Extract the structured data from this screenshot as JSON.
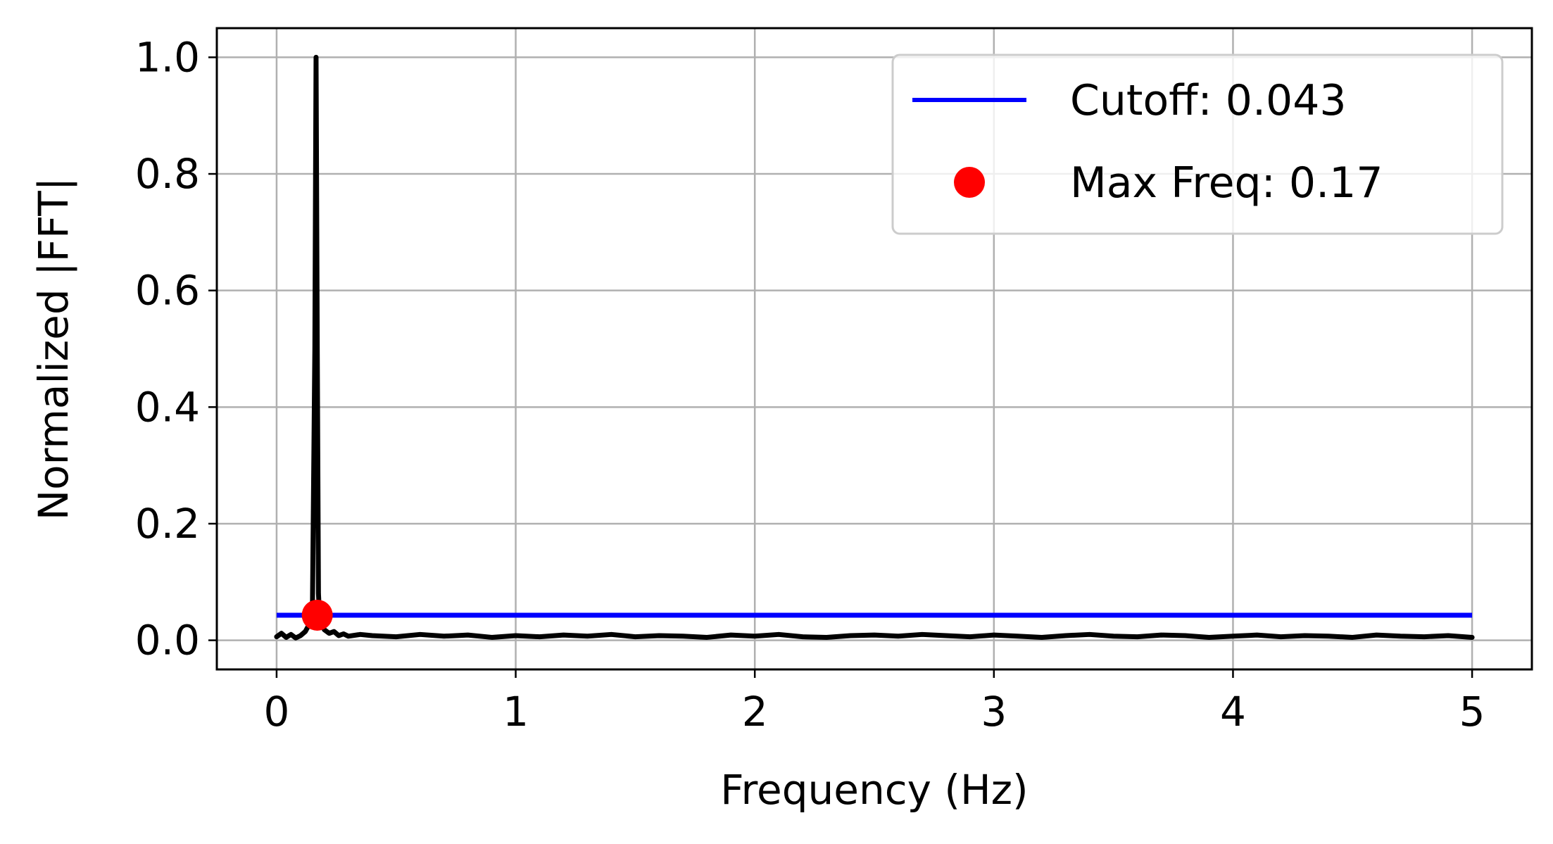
{
  "chart_data": {
    "type": "line",
    "title": "",
    "xlabel": "Frequency (Hz)",
    "ylabel": "Normalized |FFT|",
    "xlim": [
      -0.25,
      5.25
    ],
    "ylim": [
      -0.05,
      1.05
    ],
    "x_ticks": [
      0,
      1,
      2,
      3,
      4,
      5
    ],
    "x_tick_labels": [
      "0",
      "1",
      "2",
      "3",
      "4",
      "5"
    ],
    "y_ticks": [
      0.0,
      0.2,
      0.4,
      0.6,
      0.8,
      1.0
    ],
    "y_tick_labels": [
      "0.0",
      "0.2",
      "0.4",
      "0.6",
      "0.8",
      "1.0"
    ],
    "grid": true,
    "legend_position": "top-right",
    "series": [
      {
        "name": "",
        "color": "#000000",
        "x": [
          0.0,
          0.02,
          0.04,
          0.06,
          0.08,
          0.1,
          0.12,
          0.14,
          0.15,
          0.16,
          0.165,
          0.17,
          0.175,
          0.18,
          0.19,
          0.2,
          0.22,
          0.24,
          0.26,
          0.28,
          0.3,
          0.35,
          0.4,
          0.5,
          0.6,
          0.7,
          0.8,
          0.9,
          1.0,
          1.1,
          1.2,
          1.3,
          1.4,
          1.5,
          1.6,
          1.7,
          1.8,
          1.9,
          2.0,
          2.1,
          2.2,
          2.3,
          2.4,
          2.5,
          2.6,
          2.7,
          2.8,
          2.9,
          3.0,
          3.1,
          3.2,
          3.3,
          3.4,
          3.5,
          3.6,
          3.7,
          3.8,
          3.9,
          4.0,
          4.1,
          4.2,
          4.3,
          4.4,
          4.5,
          4.6,
          4.7,
          4.8,
          4.9,
          5.0
        ],
        "y": [
          0.006,
          0.012,
          0.005,
          0.01,
          0.004,
          0.008,
          0.015,
          0.03,
          0.06,
          0.5,
          1.0,
          0.5,
          0.08,
          0.04,
          0.025,
          0.018,
          0.012,
          0.015,
          0.008,
          0.011,
          0.007,
          0.01,
          0.008,
          0.006,
          0.01,
          0.007,
          0.009,
          0.005,
          0.008,
          0.006,
          0.009,
          0.007,
          0.01,
          0.006,
          0.008,
          0.007,
          0.005,
          0.009,
          0.007,
          0.01,
          0.006,
          0.005,
          0.008,
          0.009,
          0.007,
          0.01,
          0.008,
          0.006,
          0.009,
          0.007,
          0.005,
          0.008,
          0.01,
          0.007,
          0.006,
          0.009,
          0.008,
          0.005,
          0.007,
          0.009,
          0.006,
          0.008,
          0.007,
          0.005,
          0.009,
          0.007,
          0.006,
          0.008,
          0.005
        ]
      },
      {
        "name": "Cutoff: 0.043",
        "color": "#0000ff",
        "x": [
          0,
          5
        ],
        "y": [
          0.043,
          0.043
        ]
      },
      {
        "name": "Max Freq: 0.17",
        "color": "#ff0000",
        "marker": "circle",
        "x": [
          0.17
        ],
        "y": [
          0.043
        ]
      }
    ]
  }
}
